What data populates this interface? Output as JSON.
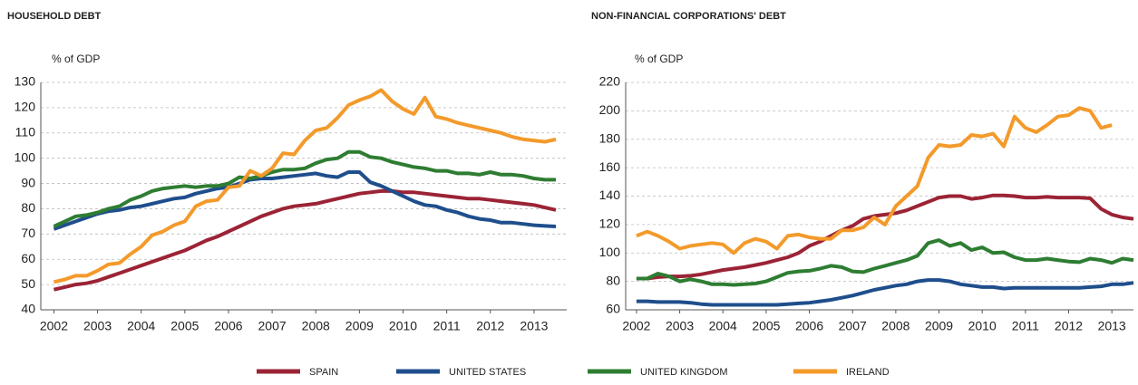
{
  "chart_data": [
    {
      "type": "line",
      "title": "HOUSEHOLD DEBT",
      "ylabel": "% of GDP",
      "x": [
        2002,
        2002.25,
        2002.5,
        2002.75,
        2003,
        2003.25,
        2003.5,
        2003.75,
        2004,
        2004.25,
        2004.5,
        2004.75,
        2005,
        2005.25,
        2005.5,
        2005.75,
        2006,
        2006.25,
        2006.5,
        2006.75,
        2007,
        2007.25,
        2007.5,
        2007.75,
        2008,
        2008.25,
        2008.5,
        2008.75,
        2009,
        2009.25,
        2009.5,
        2009.75,
        2010,
        2010.25,
        2010.5,
        2010.75,
        2011,
        2011.25,
        2011.5,
        2011.75,
        2012,
        2012.25,
        2012.5,
        2012.75,
        2013,
        2013.25,
        2013.5
      ],
      "xlim": [
        2001.7,
        2013.75
      ],
      "xticks": [
        2002,
        2003,
        2004,
        2005,
        2006,
        2007,
        2008,
        2009,
        2010,
        2011,
        2012,
        2013
      ],
      "ylim": [
        40,
        130
      ],
      "yticks": [
        40,
        50,
        60,
        70,
        80,
        90,
        100,
        110,
        120,
        130
      ],
      "grid": true,
      "series": [
        {
          "color": "#9b2335",
          "values": [
            48,
            49,
            50,
            50.5,
            51.5,
            53,
            54.5,
            56,
            57.5,
            59,
            60.5,
            62,
            63.5,
            65.5,
            67.5,
            69,
            71,
            73,
            75,
            77,
            78.5,
            80,
            81,
            81.5,
            82,
            83,
            84,
            85,
            86,
            86.5,
            87,
            87,
            86.5,
            86.5,
            86,
            85.5,
            85,
            84.5,
            84,
            84,
            83.5,
            83,
            82.5,
            82,
            81.5,
            80.5,
            79.5
          ]
        },
        {
          "color": "#1f4e8c",
          "values": [
            72,
            73.5,
            75,
            76.5,
            78,
            79,
            79.5,
            80.5,
            81,
            82,
            83,
            84,
            84.5,
            86,
            87,
            88,
            88.5,
            90,
            91.5,
            92,
            92,
            92.5,
            93,
            93.5,
            94,
            93,
            92.5,
            94.5,
            94.5,
            90.5,
            89,
            87,
            85,
            83,
            81.5,
            81,
            79.5,
            78.5,
            77,
            76,
            75.5,
            74.5,
            74.5,
            74,
            73.5,
            73.2,
            73
          ]
        },
        {
          "color": "#2e7d32",
          "values": [
            73,
            75,
            77,
            77.5,
            78.5,
            80,
            81,
            83.5,
            85,
            87,
            88,
            88.5,
            89,
            88.5,
            89,
            89,
            90,
            92.5,
            92,
            93,
            94.5,
            95.5,
            95.5,
            96,
            98,
            99.5,
            100,
            102.5,
            102.5,
            100.5,
            100,
            98.5,
            97.5,
            96.5,
            96,
            95,
            95,
            94,
            94,
            93.5,
            94.5,
            93.5,
            93.5,
            93,
            92,
            91.5,
            91.5
          ]
        },
        {
          "color": "#f39a2b",
          "values": [
            51,
            52,
            53.5,
            53.5,
            55.5,
            58,
            58.5,
            62,
            65,
            69.5,
            71,
            73.5,
            75,
            81,
            83,
            83.5,
            88.5,
            89,
            95,
            93,
            96,
            102,
            101.5,
            107,
            111,
            112,
            116,
            121,
            123,
            124.5,
            127,
            122.5,
            119.5,
            117.5,
            124,
            116.5,
            115.5,
            114,
            113,
            112,
            111,
            110,
            108.5,
            107.5,
            107,
            106.5,
            107.5
          ]
        }
      ]
    },
    {
      "type": "line",
      "title": "NON-FINANCIAL CORPORATIONS' DEBT",
      "ylabel": "% of GDP",
      "x": [
        2002,
        2002.25,
        2002.5,
        2002.75,
        2003,
        2003.25,
        2003.5,
        2003.75,
        2004,
        2004.25,
        2004.5,
        2004.75,
        2005,
        2005.25,
        2005.5,
        2005.75,
        2006,
        2006.25,
        2006.5,
        2006.75,
        2007,
        2007.25,
        2007.5,
        2007.75,
        2008,
        2008.25,
        2008.5,
        2008.75,
        2009,
        2009.25,
        2009.5,
        2009.75,
        2010,
        2010.25,
        2010.5,
        2010.75,
        2011,
        2011.25,
        2011.5,
        2011.75,
        2012,
        2012.25,
        2012.5,
        2012.75,
        2013,
        2013.25,
        2013.5
      ],
      "xlim": [
        2001.75,
        2013.5
      ],
      "xticks": [
        2002,
        2003,
        2004,
        2005,
        2006,
        2007,
        2008,
        2009,
        2010,
        2011,
        2012,
        2013
      ],
      "ylim": [
        60,
        220
      ],
      "yticks": [
        60,
        80,
        100,
        120,
        140,
        160,
        180,
        200,
        220
      ],
      "grid": true,
      "series": [
        {
          "color": "#9b2335",
          "values": [
            82,
            82,
            83,
            83.5,
            83.5,
            84,
            85,
            86.5,
            88,
            89,
            90,
            91.5,
            93,
            95,
            97,
            100,
            105,
            108,
            112,
            116,
            119,
            124,
            126,
            127,
            128,
            130,
            133,
            136,
            139,
            140,
            140,
            138,
            139,
            140.5,
            140.5,
            140,
            139,
            139,
            139.5,
            139,
            139,
            139,
            138.5,
            131,
            127,
            125,
            124
          ]
        },
        {
          "color": "#1f4e8c",
          "values": [
            66,
            66,
            65.5,
            65.5,
            65.5,
            65,
            64,
            63.5,
            63.5,
            63.5,
            63.5,
            63.5,
            63.5,
            63.5,
            64,
            64.5,
            65,
            66,
            67,
            68.5,
            70,
            72,
            74,
            75.5,
            77,
            78,
            80,
            81,
            81,
            80,
            78,
            77,
            76,
            76,
            75,
            75.5,
            75.5,
            75.5,
            75.5,
            75.5,
            75.5,
            75.5,
            76,
            76.5,
            78,
            78,
            79
          ]
        },
        {
          "color": "#2e7d32",
          "values": [
            82,
            82,
            85.5,
            83.5,
            80,
            81.5,
            80,
            78,
            78,
            77.5,
            78,
            78.5,
            80,
            83,
            86,
            87,
            87.5,
            89,
            91,
            90,
            87,
            86.5,
            89,
            91,
            93,
            95,
            98,
            107,
            109,
            105,
            107,
            102,
            104,
            100,
            100.5,
            97,
            95,
            95,
            96,
            95,
            94,
            93.5,
            96,
            95,
            93,
            96,
            95
          ]
        },
        {
          "color": "#f39a2b",
          "values": [
            112,
            115,
            112,
            108,
            103,
            105,
            106,
            107,
            106,
            100,
            107,
            110,
            108,
            103,
            112,
            113,
            111,
            110,
            110,
            116,
            116,
            118,
            125,
            120,
            133,
            140,
            147,
            167,
            176,
            175,
            176,
            183,
            182,
            184,
            175,
            196,
            188,
            185,
            190,
            196,
            197,
            202,
            200,
            188,
            190,
            null,
            null
          ]
        }
      ]
    }
  ],
  "legend": [
    {
      "name": "SPAIN",
      "color": "#9b2335"
    },
    {
      "name": "UNITED STATES",
      "color": "#1f4e8c"
    },
    {
      "name": "UNITED KINGDOM",
      "color": "#2e7d32"
    },
    {
      "name": "IRELAND",
      "color": "#f39a2b"
    }
  ]
}
